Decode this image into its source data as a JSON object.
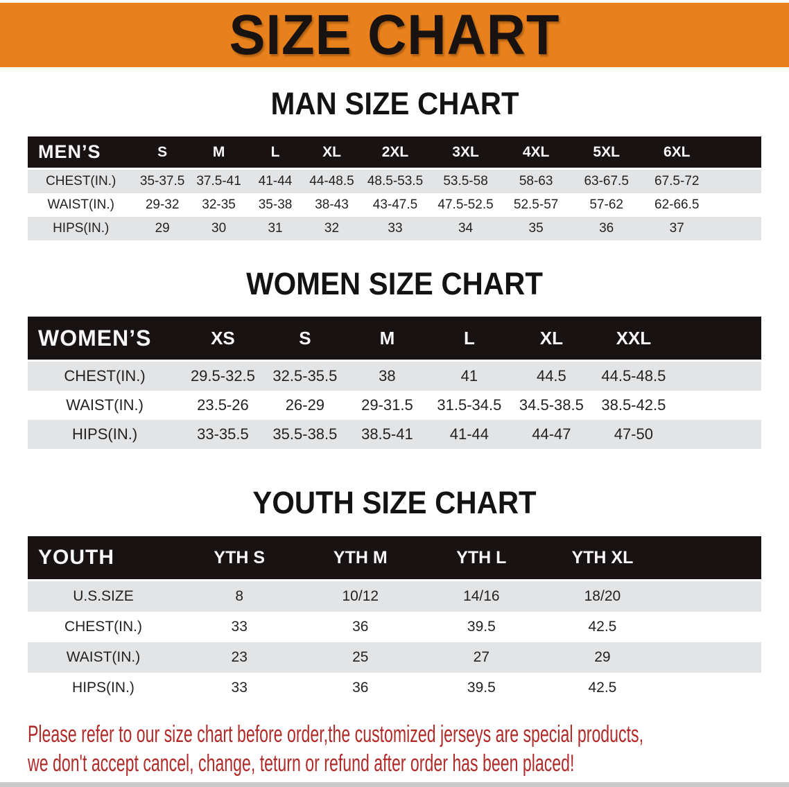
{
  "banner": {
    "title": "SIZE CHART",
    "bg_color": "#E8811C",
    "text_color": "#181210"
  },
  "sections": [
    {
      "kind": "men",
      "heading": "MAN SIZE CHART",
      "table": {
        "corner_label": "MEN’S",
        "columns": [
          "S",
          "M",
          "L",
          "XL",
          "2XL",
          "3XL",
          "4XL",
          "5XL",
          "6XL"
        ],
        "rows": [
          {
            "label": "CHEST(IN.)",
            "values": [
              "35-37.5",
              "37.5-41",
              "41-44",
              "44-48.5",
              "48.5-53.5",
              "53.5-58",
              "58-63",
              "63-67.5",
              "67.5-72"
            ]
          },
          {
            "label": "WAIST(IN.)",
            "values": [
              "29-32",
              "32-35",
              "35-38",
              "38-43",
              "43-47.5",
              "47.5-52.5",
              "52.5-57",
              "57-62",
              "62-66.5"
            ]
          },
          {
            "label": "HIPS(IN.)",
            "values": [
              "29",
              "30",
              "31",
              "32",
              "33",
              "34",
              "35",
              "36",
              "37"
            ]
          }
        ]
      }
    },
    {
      "kind": "women",
      "heading": "WOMEN SIZE CHART",
      "table": {
        "corner_label": "WOMEN’S",
        "columns": [
          "XS",
          "S",
          "M",
          "L",
          "XL",
          "XXL"
        ],
        "rows": [
          {
            "label": "CHEST(IN.)",
            "values": [
              "29.5-32.5",
              "32.5-35.5",
              "38",
              "41",
              "44.5",
              "44.5-48.5"
            ]
          },
          {
            "label": "WAIST(IN.)",
            "values": [
              "23.5-26",
              "26-29",
              "29-31.5",
              "31.5-34.5",
              "34.5-38.5",
              "38.5-42.5"
            ]
          },
          {
            "label": "HIPS(IN.)",
            "values": [
              "33-35.5",
              "35.5-38.5",
              "38.5-41",
              "41-44",
              "44-47",
              "47-50"
            ]
          }
        ]
      }
    },
    {
      "kind": "youth",
      "heading": "YOUTH SIZE CHART",
      "table": {
        "corner_label": "YOUTH",
        "columns": [
          "YTH S",
          "YTH M",
          "YTH L",
          "YTH XL"
        ],
        "rows": [
          {
            "label": "U.S.SIZE",
            "values": [
              "8",
              "10/12",
              "14/16",
              "18/20"
            ]
          },
          {
            "label": "CHEST(IN.)",
            "values": [
              "33",
              "36",
              "39.5",
              "42.5"
            ]
          },
          {
            "label": "WAIST(IN.)",
            "values": [
              "23",
              "25",
              "27",
              "29"
            ]
          },
          {
            "label": "HIPS(IN.)",
            "values": [
              "33",
              "36",
              "39.5",
              "42.5"
            ]
          }
        ]
      }
    }
  ],
  "footer": {
    "line1": "Please refer to our size chart before order,the customized jerseys are special products,",
    "line2": "we don't accept cancel, change, teturn or refund after order has been placed!",
    "text_color": "#B02A28"
  },
  "colors": {
    "table_header_bg": "#181312",
    "row_stripe": "#E3E4E6"
  }
}
